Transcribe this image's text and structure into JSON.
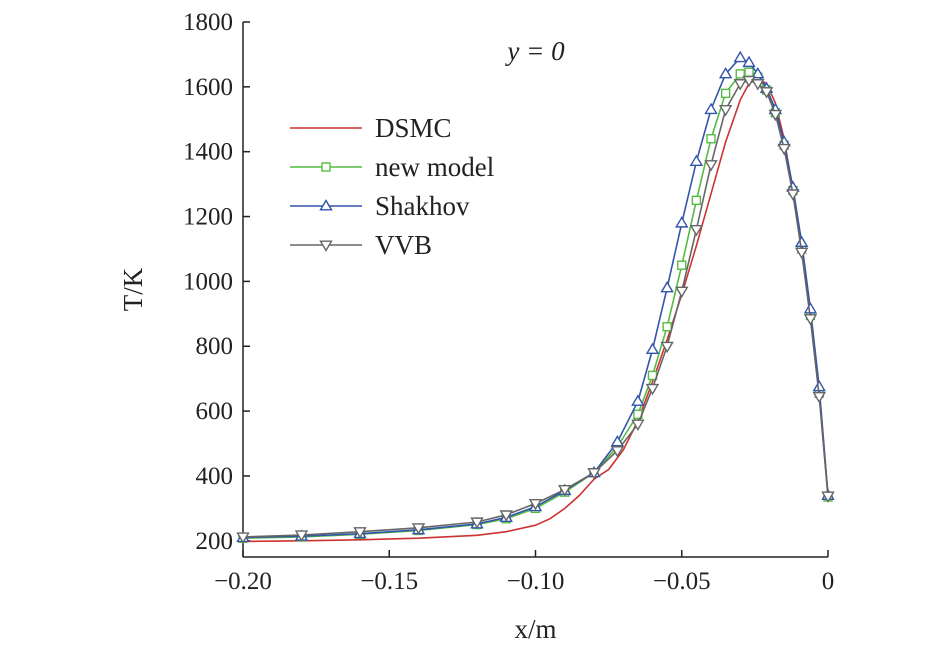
{
  "chart_data": {
    "type": "line",
    "annotation": "y = 0",
    "xlabel": "x/m",
    "ylabel": "T/K",
    "xlim": [
      -0.2,
      0
    ],
    "ylim": [
      150,
      1800
    ],
    "xticks": [
      -0.2,
      -0.15,
      -0.1,
      -0.05,
      0
    ],
    "xtick_labels": [
      "−0.20",
      "−0.15",
      "−0.10",
      "−0.05",
      "0"
    ],
    "yticks": [
      200,
      400,
      600,
      800,
      1000,
      1200,
      1400,
      1600,
      1800
    ],
    "ytick_labels": [
      "200",
      "400",
      "600",
      "800",
      "1000",
      "1200",
      "1400",
      "1600",
      "1800"
    ],
    "grid": false,
    "legend_position": "upper-left",
    "series": [
      {
        "name": "DSMC",
        "color": "#cc3333",
        "marker": "none",
        "x": [
          -0.2,
          -0.18,
          -0.16,
          -0.14,
          -0.12,
          -0.11,
          -0.1,
          -0.095,
          -0.09,
          -0.085,
          -0.08,
          -0.075,
          -0.07,
          -0.065,
          -0.06,
          -0.055,
          -0.05,
          -0.045,
          -0.04,
          -0.035,
          -0.03,
          -0.027,
          -0.024,
          -0.021,
          -0.018,
          -0.015,
          -0.012,
          -0.009,
          -0.006,
          -0.003,
          0
        ],
        "y": [
          198,
          200,
          203,
          208,
          217,
          228,
          248,
          268,
          300,
          340,
          390,
          420,
          480,
          570,
          690,
          820,
          960,
          1110,
          1270,
          1430,
          1560,
          1610,
          1625,
          1610,
          1550,
          1440,
          1280,
          1100,
          890,
          660,
          340
        ]
      },
      {
        "name": "new model",
        "color": "#55bb44",
        "marker": "square",
        "x": [
          -0.2,
          -0.18,
          -0.16,
          -0.14,
          -0.12,
          -0.11,
          -0.1,
          -0.09,
          -0.08,
          -0.072,
          -0.065,
          -0.06,
          -0.055,
          -0.05,
          -0.045,
          -0.04,
          -0.035,
          -0.03,
          -0.027,
          -0.024,
          -0.021,
          -0.018,
          -0.015,
          -0.012,
          -0.009,
          -0.006,
          -0.003,
          0
        ],
        "y": [
          208,
          212,
          220,
          232,
          250,
          268,
          300,
          350,
          410,
          490,
          590,
          710,
          860,
          1050,
          1250,
          1440,
          1580,
          1640,
          1645,
          1630,
          1590,
          1520,
          1420,
          1280,
          1100,
          895,
          655,
          335
        ]
      },
      {
        "name": "Shakhov",
        "color": "#3355aa",
        "marker": "triangle-up",
        "x": [
          -0.2,
          -0.18,
          -0.16,
          -0.14,
          -0.12,
          -0.11,
          -0.1,
          -0.09,
          -0.08,
          -0.072,
          -0.065,
          -0.06,
          -0.055,
          -0.05,
          -0.045,
          -0.04,
          -0.035,
          -0.03,
          -0.027,
          -0.024,
          -0.021,
          -0.018,
          -0.015,
          -0.012,
          -0.009,
          -0.006,
          -0.003,
          0
        ],
        "y": [
          210,
          214,
          222,
          234,
          252,
          272,
          305,
          355,
          410,
          505,
          630,
          790,
          980,
          1180,
          1370,
          1530,
          1640,
          1690,
          1675,
          1640,
          1595,
          1530,
          1430,
          1290,
          1120,
          915,
          675,
          340
        ]
      },
      {
        "name": "VVB",
        "color": "#666666",
        "marker": "triangle-down",
        "x": [
          -0.2,
          -0.18,
          -0.16,
          -0.14,
          -0.12,
          -0.11,
          -0.1,
          -0.09,
          -0.08,
          -0.072,
          -0.065,
          -0.06,
          -0.055,
          -0.05,
          -0.045,
          -0.04,
          -0.035,
          -0.03,
          -0.027,
          -0.024,
          -0.021,
          -0.018,
          -0.015,
          -0.012,
          -0.009,
          -0.006,
          -0.003,
          0
        ],
        "y": [
          212,
          218,
          228,
          240,
          258,
          280,
          315,
          358,
          410,
          478,
          560,
          670,
          800,
          970,
          1160,
          1360,
          1530,
          1610,
          1620,
          1610,
          1585,
          1515,
          1410,
          1270,
          1090,
          885,
          645,
          338
        ]
      }
    ]
  }
}
